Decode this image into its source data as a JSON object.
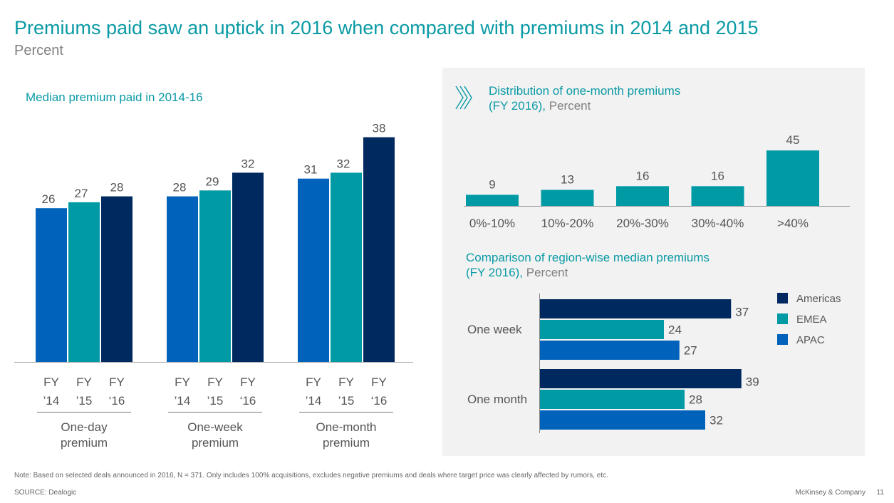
{
  "header": {
    "title": "Premiums paid saw an uptick in 2016 when compared with premiums in 2014 and 2015",
    "subtitle": "Percent"
  },
  "colors": {
    "fy14": "#0062bb",
    "fy15": "#009aa5",
    "fy16": "#002960",
    "title_teal": "#0a9aa5",
    "panel_bg": "#f2f2f2"
  },
  "chart_data": [
    {
      "type": "bar",
      "title": "Median premium paid in 2014-16",
      "groups": [
        "One-day premium",
        "One-week premium",
        "One-month premium"
      ],
      "group_labels": [
        [
          "One-day",
          "premium"
        ],
        [
          "One-week",
          "premium"
        ],
        [
          "One-month",
          "premium"
        ]
      ],
      "categories": [
        [
          "FY",
          "’14"
        ],
        [
          "FY",
          "’15"
        ],
        [
          "FY",
          "‘16"
        ]
      ],
      "series": [
        {
          "name": "FY '14",
          "values": [
            26,
            28,
            31
          ]
        },
        {
          "name": "FY '15",
          "values": [
            27,
            29,
            32
          ]
        },
        {
          "name": "FY '16",
          "values": [
            28,
            32,
            38
          ]
        }
      ],
      "ylim": [
        0,
        40
      ],
      "grid": false
    },
    {
      "type": "bar",
      "title": "Distribution of one-month premiums",
      "title_line2": "(FY 2016),",
      "unit_label": " Percent",
      "icon": "double-chevron-right-icon",
      "categories": [
        "0%-10%",
        "10%-20%",
        "20%-30%",
        "30%-40%",
        ">40%"
      ],
      "values": [
        9,
        13,
        16,
        16,
        45
      ],
      "ylim": [
        0,
        50
      ],
      "grid": false
    },
    {
      "type": "bar",
      "orientation": "horizontal",
      "title": "Comparison of region-wise median premiums",
      "title_line2": "(FY 2016),",
      "unit_label": " Percent",
      "categories": [
        "One week",
        "One month"
      ],
      "series": [
        {
          "name": "Americas",
          "values": [
            37,
            39
          ]
        },
        {
          "name": "EMEA",
          "values": [
            24,
            28
          ]
        },
        {
          "name": "APAC",
          "values": [
            27,
            32
          ]
        }
      ],
      "xlim": [
        0,
        40
      ],
      "legend": "right",
      "grid": false
    }
  ],
  "footer": {
    "note": "Note: Based on selected deals announced in 2016, N = 371. Only includes 100% acquisitions, excludes negative premiums and deals where target price was clearly affected by rumors, etc.",
    "source": "SOURCE: Dealogic",
    "brand": "McKinsey & Company",
    "page": "11"
  }
}
